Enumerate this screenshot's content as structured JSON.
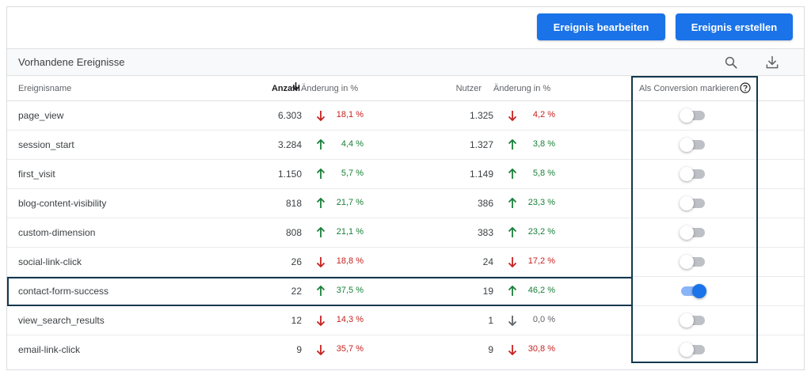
{
  "toolbar": {
    "edit_label": "Ereignis bearbeiten",
    "create_label": "Ereignis erstellen"
  },
  "section": {
    "title": "Vorhandene Ereignisse",
    "search_icon": "search-icon",
    "download_icon": "download-icon"
  },
  "columns": {
    "name": "Ereignisname",
    "count": "Anzahl",
    "count_sort": "sort-down-arrow-icon",
    "change1": "Änderung in %",
    "users": "Nutzer",
    "change2": "Änderung in %",
    "conversion": "Als Conversion markieren",
    "help_icon": "help-icon"
  },
  "colors": {
    "primary": "#1a73e8",
    "up": "#188038",
    "down": "#c5221f",
    "neutral": "#5f6368",
    "highlight": "#12384e"
  },
  "rows": [
    {
      "name": "page_view",
      "count": "6.303",
      "dir1": "down",
      "pct1": "18,1 %",
      "users": "1.325",
      "dir2": "down",
      "pct2": "4,2 %",
      "conversion": false
    },
    {
      "name": "session_start",
      "count": "3.284",
      "dir1": "up",
      "pct1": "4,4 %",
      "users": "1.327",
      "dir2": "up",
      "pct2": "3,8 %",
      "conversion": false
    },
    {
      "name": "first_visit",
      "count": "1.150",
      "dir1": "up",
      "pct1": "5,7 %",
      "users": "1.149",
      "dir2": "up",
      "pct2": "5,8 %",
      "conversion": false
    },
    {
      "name": "blog-content-visibility",
      "count": "818",
      "dir1": "up",
      "pct1": "21,7 %",
      "users": "386",
      "dir2": "up",
      "pct2": "23,3 %",
      "conversion": false
    },
    {
      "name": "custom-dimension",
      "count": "808",
      "dir1": "up",
      "pct1": "21,1 %",
      "users": "383",
      "dir2": "up",
      "pct2": "23,2 %",
      "conversion": false
    },
    {
      "name": "social-link-click",
      "count": "26",
      "dir1": "down",
      "pct1": "18,8 %",
      "users": "24",
      "dir2": "down",
      "pct2": "17,2 %",
      "conversion": false
    },
    {
      "name": "contact-form-success",
      "count": "22",
      "dir1": "up",
      "pct1": "37,5 %",
      "users": "19",
      "dir2": "up",
      "pct2": "46,2 %",
      "conversion": true
    },
    {
      "name": "view_search_results",
      "count": "12",
      "dir1": "down",
      "pct1": "14,3 %",
      "users": "1",
      "dir2": "neutral-down",
      "pct2": "0,0 %",
      "conversion": false
    },
    {
      "name": "email-link-click",
      "count": "9",
      "dir1": "down",
      "pct1": "35,7 %",
      "users": "9",
      "dir2": "down",
      "pct2": "30,8 %",
      "conversion": false
    }
  ]
}
